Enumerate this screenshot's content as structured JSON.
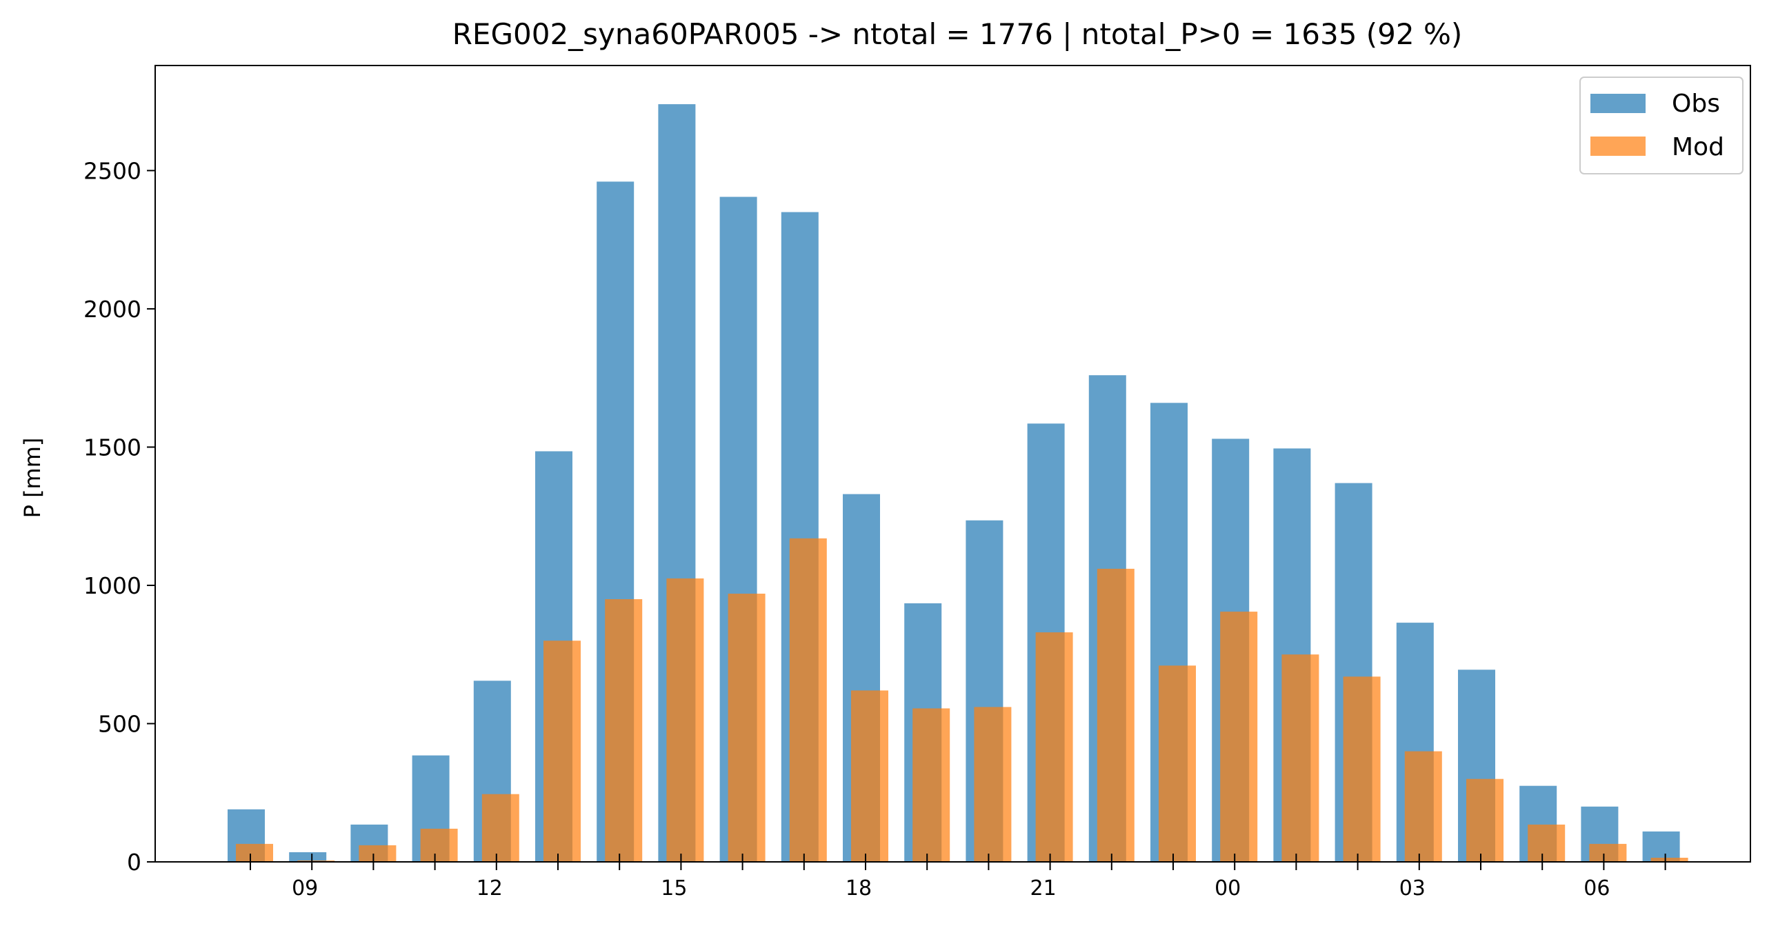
{
  "chart_data": {
    "type": "bar",
    "title": "REG002_syna60PAR005 -> ntotal = 1776 | ntotal_P>0 = 1635 (92 %)",
    "xlabel": "",
    "ylabel": "P [mm]",
    "ylim": [
      0,
      2880
    ],
    "yticks": [
      0,
      500,
      1000,
      1500,
      2000,
      2500
    ],
    "x_tick_labels": [
      "09",
      "12",
      "15",
      "18",
      "21",
      "00",
      "03",
      "06"
    ],
    "categories": [
      "08",
      "09",
      "10",
      "11",
      "12",
      "13",
      "14",
      "15",
      "16",
      "17",
      "18",
      "19",
      "20",
      "21",
      "22",
      "23",
      "00",
      "01",
      "02",
      "03",
      "04",
      "05",
      "06",
      "07"
    ],
    "series": [
      {
        "name": "Obs",
        "color": "#1f77b4",
        "opacity": 0.7,
        "values": [
          190,
          35,
          135,
          385,
          655,
          1485,
          2460,
          2740,
          2405,
          2350,
          1330,
          935,
          1235,
          1585,
          1760,
          1660,
          1530,
          1495,
          1370,
          865,
          695,
          275,
          200,
          110
        ]
      },
      {
        "name": "Mod",
        "color": "#ff7f0e",
        "opacity": 0.7,
        "values": [
          65,
          5,
          60,
          120,
          245,
          800,
          950,
          1025,
          970,
          1170,
          620,
          555,
          560,
          830,
          1060,
          710,
          905,
          750,
          670,
          400,
          300,
          135,
          65,
          15
        ]
      }
    ],
    "legend_position": "top-right",
    "grid": false
  }
}
